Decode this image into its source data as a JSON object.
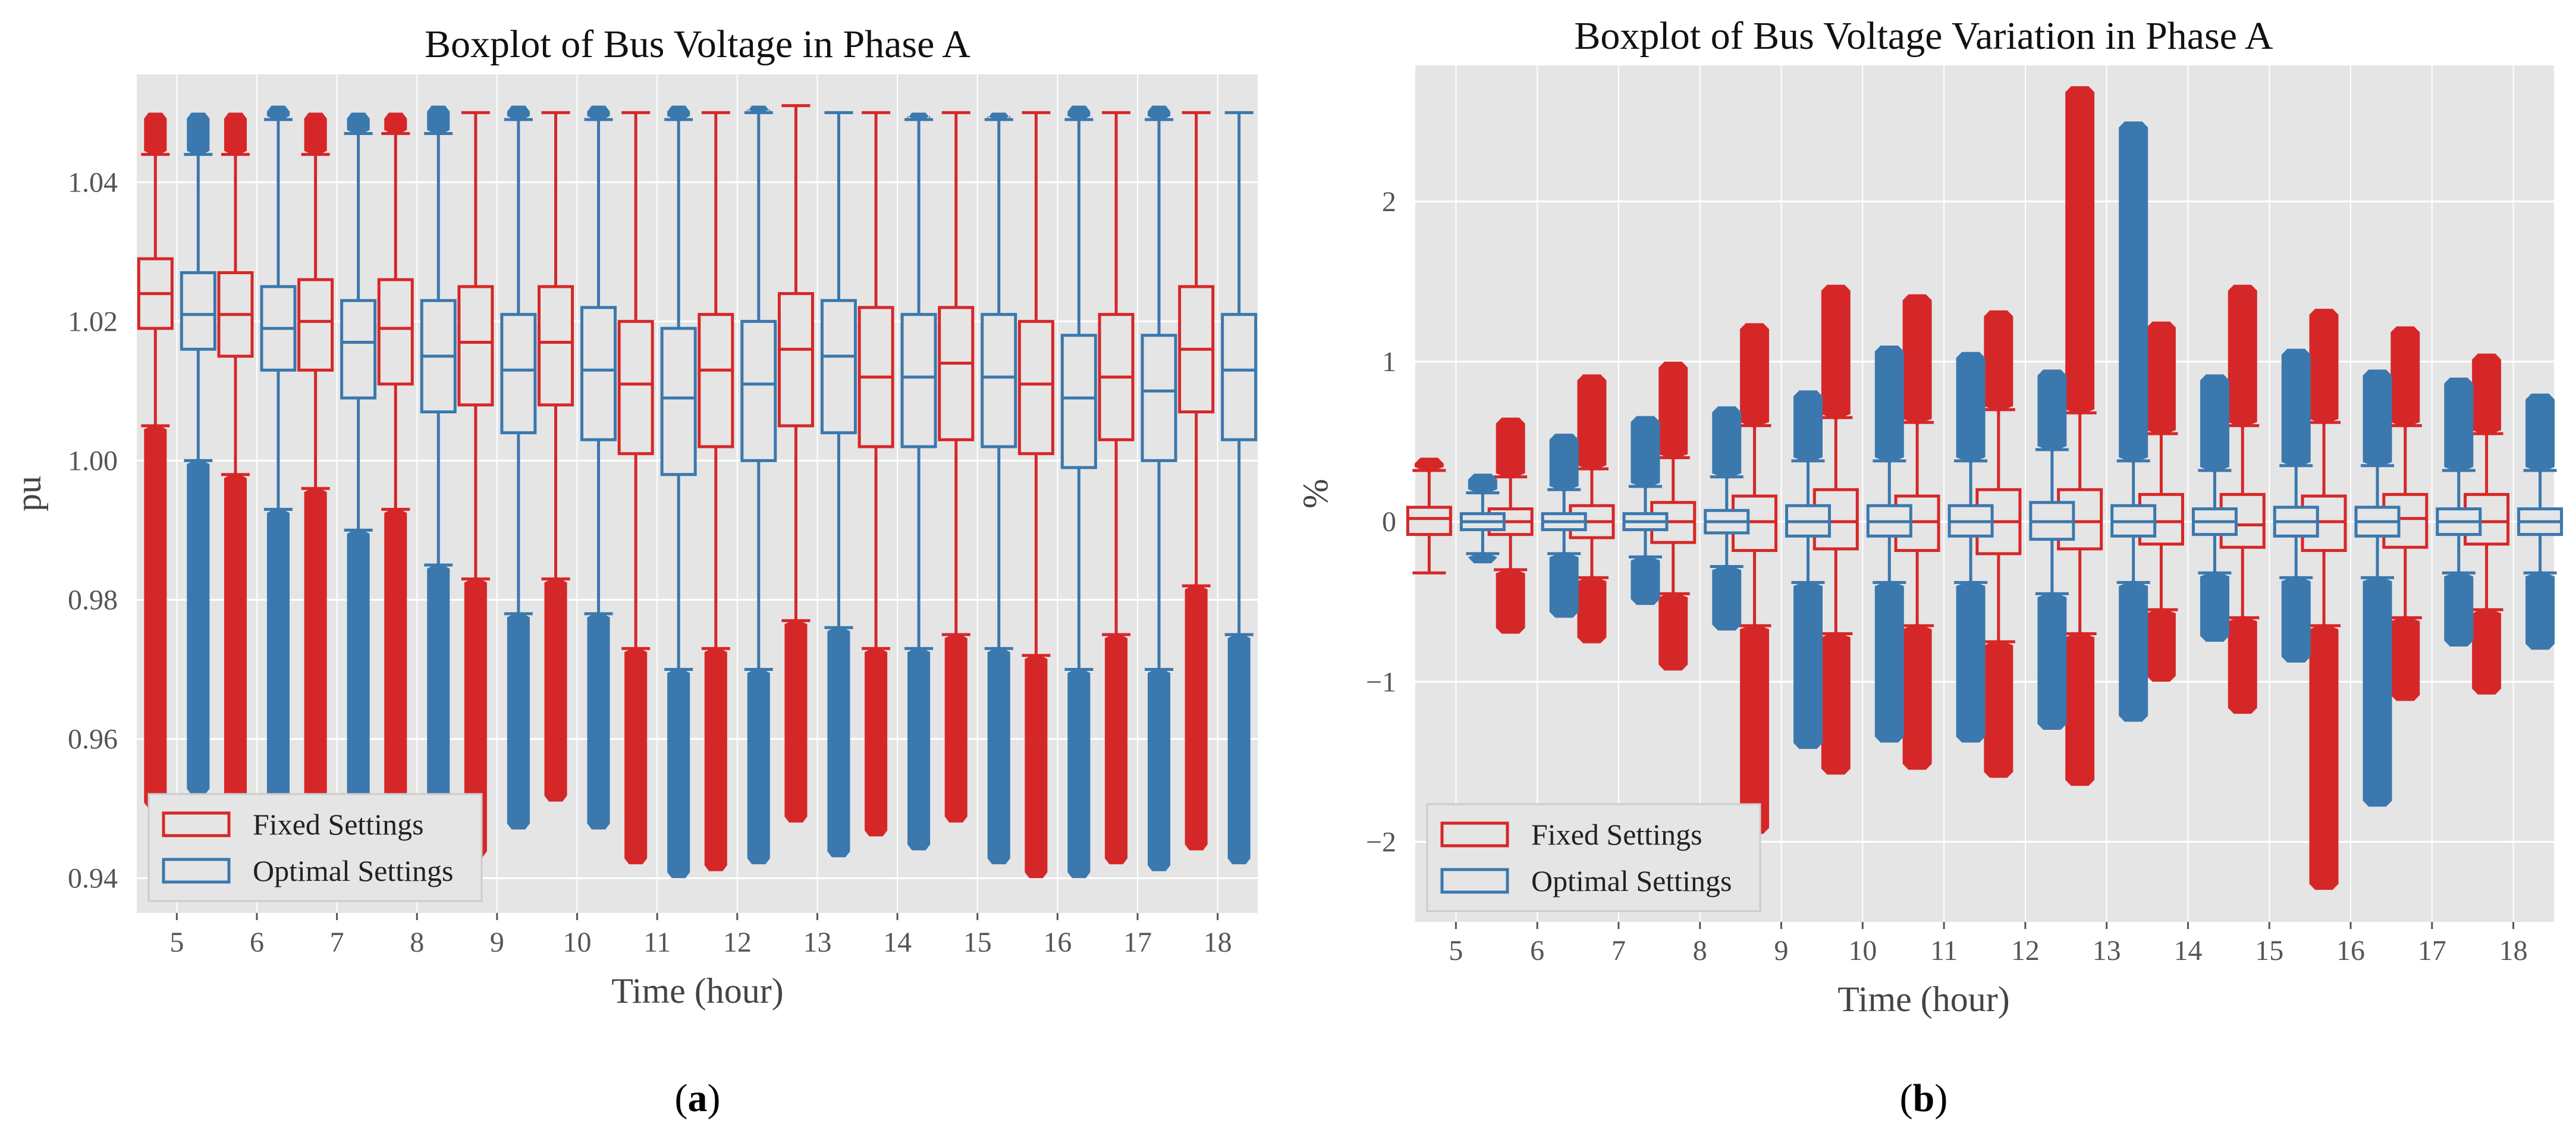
{
  "chart_data": [
    {
      "type": "boxplot",
      "title": "Boxplot of Bus Voltage in Phase A",
      "xlabel": "Time (hour)",
      "ylabel": "pu",
      "caption": "(a)",
      "caption_letter": "a",
      "ylim": [
        0.935,
        1.0555
      ],
      "yticks": [
        0.94,
        0.96,
        0.98,
        1.0,
        1.02,
        1.04
      ],
      "ytick_labels": [
        "0.94",
        "0.96",
        "0.98",
        "1.00",
        "1.02",
        "1.04"
      ],
      "categories": [
        "5",
        "6",
        "7",
        "8",
        "9",
        "10",
        "11",
        "12",
        "13",
        "14",
        "15",
        "16",
        "17",
        "18"
      ],
      "legend": {
        "position": "lower-left",
        "entries": [
          "Fixed Settings",
          "Optimal Settings"
        ]
      },
      "series": [
        {
          "name": "Fixed Settings",
          "color": "#d62728",
          "boxes": [
            {
              "q1": 1.019,
              "med": 1.024,
              "q3": 1.029,
              "wlo": 1.005,
              "whi": 1.044,
              "fmin": 0.95,
              "fmax": 1.05
            },
            {
              "q1": 1.015,
              "med": 1.021,
              "q3": 1.027,
              "wlo": 0.998,
              "whi": 1.044,
              "fmin": 0.945,
              "fmax": 1.05
            },
            {
              "q1": 1.013,
              "med": 1.02,
              "q3": 1.026,
              "wlo": 0.996,
              "whi": 1.044,
              "fmin": 0.945,
              "fmax": 1.05
            },
            {
              "q1": 1.011,
              "med": 1.019,
              "q3": 1.026,
              "wlo": 0.993,
              "whi": 1.047,
              "fmin": 0.942,
              "fmax": 1.05
            },
            {
              "q1": 1.008,
              "med": 1.017,
              "q3": 1.025,
              "wlo": 0.983,
              "whi": 1.05,
              "fmin": 0.943,
              "fmax": 1.05
            },
            {
              "q1": 1.008,
              "med": 1.017,
              "q3": 1.025,
              "wlo": 0.983,
              "whi": 1.05,
              "fmin": 0.951,
              "fmax": 1.05
            },
            {
              "q1": 1.001,
              "med": 1.011,
              "q3": 1.02,
              "wlo": 0.973,
              "whi": 1.05,
              "fmin": 0.942,
              "fmax": 1.05
            },
            {
              "q1": 1.002,
              "med": 1.013,
              "q3": 1.021,
              "wlo": 0.973,
              "whi": 1.05,
              "fmin": 0.941,
              "fmax": 1.05
            },
            {
              "q1": 1.005,
              "med": 1.016,
              "q3": 1.024,
              "wlo": 0.977,
              "whi": 1.051,
              "fmin": 0.948,
              "fmax": 1.051
            },
            {
              "q1": 1.002,
              "med": 1.012,
              "q3": 1.022,
              "wlo": 0.973,
              "whi": 1.05,
              "fmin": 0.946,
              "fmax": 1.05
            },
            {
              "q1": 1.003,
              "med": 1.014,
              "q3": 1.022,
              "wlo": 0.975,
              "whi": 1.05,
              "fmin": 0.948,
              "fmax": 1.05
            },
            {
              "q1": 1.001,
              "med": 1.011,
              "q3": 1.02,
              "wlo": 0.972,
              "whi": 1.05,
              "fmin": 0.94,
              "fmax": 1.05
            },
            {
              "q1": 1.003,
              "med": 1.012,
              "q3": 1.021,
              "wlo": 0.975,
              "whi": 1.05,
              "fmin": 0.942,
              "fmax": 1.05
            },
            {
              "q1": 1.007,
              "med": 1.016,
              "q3": 1.025,
              "wlo": 0.982,
              "whi": 1.05,
              "fmin": 0.944,
              "fmax": 1.05
            }
          ]
        },
        {
          "name": "Optimal Settings",
          "color": "#3a78ae",
          "boxes": [
            {
              "q1": 1.016,
              "med": 1.021,
              "q3": 1.027,
              "wlo": 1.0,
              "whi": 1.044,
              "fmin": 0.952,
              "fmax": 1.05
            },
            {
              "q1": 1.013,
              "med": 1.019,
              "q3": 1.025,
              "wlo": 0.993,
              "whi": 1.049,
              "fmin": 0.947,
              "fmax": 1.051
            },
            {
              "q1": 1.009,
              "med": 1.017,
              "q3": 1.023,
              "wlo": 0.99,
              "whi": 1.047,
              "fmin": 0.948,
              "fmax": 1.05
            },
            {
              "q1": 1.007,
              "med": 1.015,
              "q3": 1.023,
              "wlo": 0.985,
              "whi": 1.047,
              "fmin": 0.948,
              "fmax": 1.051
            },
            {
              "q1": 1.004,
              "med": 1.013,
              "q3": 1.021,
              "wlo": 0.978,
              "whi": 1.049,
              "fmin": 0.947,
              "fmax": 1.051
            },
            {
              "q1": 1.003,
              "med": 1.013,
              "q3": 1.022,
              "wlo": 0.978,
              "whi": 1.049,
              "fmin": 0.947,
              "fmax": 1.051
            },
            {
              "q1": 0.998,
              "med": 1.009,
              "q3": 1.019,
              "wlo": 0.97,
              "whi": 1.049,
              "fmin": 0.94,
              "fmax": 1.051
            },
            {
              "q1": 1.0,
              "med": 1.011,
              "q3": 1.02,
              "wlo": 0.97,
              "whi": 1.05,
              "fmin": 0.942,
              "fmax": 1.051
            },
            {
              "q1": 1.004,
              "med": 1.015,
              "q3": 1.023,
              "wlo": 0.976,
              "whi": 1.05,
              "fmin": 0.943,
              "fmax": 1.05
            },
            {
              "q1": 1.002,
              "med": 1.012,
              "q3": 1.021,
              "wlo": 0.973,
              "whi": 1.049,
              "fmin": 0.944,
              "fmax": 1.05
            },
            {
              "q1": 1.002,
              "med": 1.012,
              "q3": 1.021,
              "wlo": 0.973,
              "whi": 1.049,
              "fmin": 0.942,
              "fmax": 1.05
            },
            {
              "q1": 0.999,
              "med": 1.009,
              "q3": 1.018,
              "wlo": 0.97,
              "whi": 1.049,
              "fmin": 0.94,
              "fmax": 1.051
            },
            {
              "q1": 1.0,
              "med": 1.01,
              "q3": 1.018,
              "wlo": 0.97,
              "whi": 1.049,
              "fmin": 0.941,
              "fmax": 1.051
            },
            {
              "q1": 1.003,
              "med": 1.013,
              "q3": 1.021,
              "wlo": 0.975,
              "whi": 1.05,
              "fmin": 0.942,
              "fmax": 1.05
            }
          ]
        }
      ]
    },
    {
      "type": "boxplot",
      "title": "Boxplot of Bus Voltage Variation in Phase A",
      "xlabel": "Time (hour)",
      "ylabel": "%",
      "caption": "(b)",
      "caption_letter": "b",
      "ylim": [
        -2.5,
        2.85
      ],
      "yticks": [
        -2,
        -1,
        0,
        1,
        2
      ],
      "ytick_labels": [
        "−2",
        "−1",
        "0",
        "1",
        "2"
      ],
      "categories": [
        "5",
        "6",
        "7",
        "8",
        "9",
        "10",
        "11",
        "12",
        "13",
        "14",
        "15",
        "16",
        "17",
        "18"
      ],
      "legend": {
        "position": "lower-left",
        "entries": [
          "Fixed Settings",
          "Optimal Settings"
        ]
      },
      "series": [
        {
          "name": "Fixed Settings",
          "color": "#d62728",
          "boxes": [
            {
              "q1": -0.08,
              "med": 0.02,
              "q3": 0.09,
              "wlo": -0.32,
              "whi": 0.32,
              "fmin": -0.32,
              "fmax": 0.4
            },
            {
              "q1": -0.08,
              "med": 0.0,
              "q3": 0.08,
              "wlo": -0.3,
              "whi": 0.28,
              "fmin": -0.7,
              "fmax": 0.65
            },
            {
              "q1": -0.1,
              "med": 0.0,
              "q3": 0.1,
              "wlo": -0.35,
              "whi": 0.33,
              "fmin": -0.76,
              "fmax": 0.92
            },
            {
              "q1": -0.13,
              "med": 0.0,
              "q3": 0.12,
              "wlo": -0.45,
              "whi": 0.4,
              "fmin": -0.93,
              "fmax": 1.0
            },
            {
              "q1": -0.18,
              "med": 0.0,
              "q3": 0.16,
              "wlo": -0.65,
              "whi": 0.6,
              "fmin": -1.95,
              "fmax": 1.24
            },
            {
              "q1": -0.17,
              "med": 0.0,
              "q3": 0.2,
              "wlo": -0.7,
              "whi": 0.65,
              "fmin": -1.58,
              "fmax": 1.48
            },
            {
              "q1": -0.18,
              "med": 0.0,
              "q3": 0.16,
              "wlo": -0.65,
              "whi": 0.62,
              "fmin": -1.55,
              "fmax": 1.42
            },
            {
              "q1": -0.2,
              "med": 0.0,
              "q3": 0.2,
              "wlo": -0.75,
              "whi": 0.7,
              "fmin": -1.6,
              "fmax": 1.32
            },
            {
              "q1": -0.17,
              "med": 0.0,
              "q3": 0.2,
              "wlo": -0.7,
              "whi": 0.68,
              "fmin": -1.65,
              "fmax": 2.72
            },
            {
              "q1": -0.14,
              "med": 0.0,
              "q3": 0.17,
              "wlo": -0.55,
              "whi": 0.55,
              "fmin": -1.0,
              "fmax": 1.25
            },
            {
              "q1": -0.16,
              "med": -0.02,
              "q3": 0.17,
              "wlo": -0.6,
              "whi": 0.6,
              "fmin": -1.2,
              "fmax": 1.48
            },
            {
              "q1": -0.18,
              "med": 0.0,
              "q3": 0.16,
              "wlo": -0.65,
              "whi": 0.62,
              "fmin": -2.3,
              "fmax": 1.33
            },
            {
              "q1": -0.16,
              "med": 0.02,
              "q3": 0.17,
              "wlo": -0.6,
              "whi": 0.6,
              "fmin": -1.12,
              "fmax": 1.22
            },
            {
              "q1": -0.14,
              "med": 0.0,
              "q3": 0.17,
              "wlo": -0.55,
              "whi": 0.55,
              "fmin": -1.08,
              "fmax": 1.05
            }
          ]
        },
        {
          "name": "Optimal Settings",
          "color": "#3a78ae",
          "boxes": [
            {
              "q1": -0.05,
              "med": 0.0,
              "q3": 0.05,
              "wlo": -0.2,
              "whi": 0.18,
              "fmin": -0.26,
              "fmax": 0.3
            },
            {
              "q1": -0.05,
              "med": 0.0,
              "q3": 0.05,
              "wlo": -0.2,
              "whi": 0.2,
              "fmin": -0.6,
              "fmax": 0.55
            },
            {
              "q1": -0.05,
              "med": 0.0,
              "q3": 0.05,
              "wlo": -0.22,
              "whi": 0.22,
              "fmin": -0.52,
              "fmax": 0.66
            },
            {
              "q1": -0.07,
              "med": 0.0,
              "q3": 0.07,
              "wlo": -0.28,
              "whi": 0.28,
              "fmin": -0.68,
              "fmax": 0.72
            },
            {
              "q1": -0.09,
              "med": 0.0,
              "q3": 0.1,
              "wlo": -0.38,
              "whi": 0.38,
              "fmin": -1.42,
              "fmax": 0.82
            },
            {
              "q1": -0.09,
              "med": 0.0,
              "q3": 0.1,
              "wlo": -0.38,
              "whi": 0.38,
              "fmin": -1.38,
              "fmax": 1.1
            },
            {
              "q1": -0.09,
              "med": 0.0,
              "q3": 0.1,
              "wlo": -0.38,
              "whi": 0.38,
              "fmin": -1.38,
              "fmax": 1.06
            },
            {
              "q1": -0.11,
              "med": 0.0,
              "q3": 0.12,
              "wlo": -0.45,
              "whi": 0.45,
              "fmin": -1.3,
              "fmax": 0.95
            },
            {
              "q1": -0.09,
              "med": 0.0,
              "q3": 0.1,
              "wlo": -0.38,
              "whi": 0.38,
              "fmin": -1.25,
              "fmax": 2.5
            },
            {
              "q1": -0.08,
              "med": 0.0,
              "q3": 0.08,
              "wlo": -0.32,
              "whi": 0.32,
              "fmin": -0.75,
              "fmax": 0.92
            },
            {
              "q1": -0.09,
              "med": 0.0,
              "q3": 0.09,
              "wlo": -0.35,
              "whi": 0.35,
              "fmin": -0.88,
              "fmax": 1.08
            },
            {
              "q1": -0.09,
              "med": 0.0,
              "q3": 0.09,
              "wlo": -0.35,
              "whi": 0.35,
              "fmin": -1.78,
              "fmax": 0.95
            },
            {
              "q1": -0.08,
              "med": 0.0,
              "q3": 0.08,
              "wlo": -0.32,
              "whi": 0.32,
              "fmin": -0.78,
              "fmax": 0.9
            },
            {
              "q1": -0.08,
              "med": 0.0,
              "q3": 0.08,
              "wlo": -0.32,
              "whi": 0.32,
              "fmin": -0.8,
              "fmax": 0.8
            }
          ]
        }
      ]
    }
  ]
}
